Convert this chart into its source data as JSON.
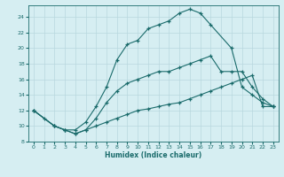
{
  "xlabel": "Humidex (Indice chaleur)",
  "bg_color": "#d6eef2",
  "grid_color": "#b8d8de",
  "line_color": "#1a6b6b",
  "xlim": [
    -0.5,
    23.5
  ],
  "ylim": [
    8,
    25.5
  ],
  "xticks": [
    0,
    1,
    2,
    3,
    4,
    5,
    6,
    7,
    8,
    9,
    10,
    11,
    12,
    13,
    14,
    15,
    16,
    17,
    18,
    19,
    20,
    21,
    22,
    23
  ],
  "yticks": [
    8,
    10,
    12,
    14,
    16,
    18,
    20,
    22,
    24
  ],
  "line1_x": [
    0,
    1,
    2,
    3,
    4,
    5,
    6,
    7,
    8,
    9,
    10,
    11,
    12,
    13,
    14,
    15,
    16,
    17,
    19,
    20,
    21,
    22,
    23
  ],
  "line1_y": [
    12,
    11,
    10,
    9.5,
    9.5,
    10.5,
    12.5,
    15,
    18.5,
    20.5,
    21,
    22.5,
    23,
    23.5,
    24.5,
    25,
    24.5,
    23,
    20,
    15,
    14,
    13,
    12.5
  ],
  "line2_x": [
    0,
    2,
    3,
    4,
    5,
    6,
    7,
    8,
    9,
    10,
    11,
    12,
    13,
    14,
    15,
    16,
    17,
    18,
    19,
    20,
    21,
    22,
    23
  ],
  "line2_y": [
    12,
    10,
    9.5,
    9,
    9.5,
    11,
    13,
    14.5,
    15.5,
    16,
    16.5,
    17,
    17,
    17.5,
    18,
    18.5,
    19,
    17,
    17,
    17,
    15,
    13.5,
    12.5
  ],
  "line3_x": [
    0,
    2,
    3,
    4,
    5,
    6,
    7,
    8,
    9,
    10,
    11,
    12,
    13,
    14,
    15,
    16,
    17,
    18,
    19,
    20,
    21,
    22,
    23
  ],
  "line3_y": [
    12,
    10,
    9.5,
    9,
    9.5,
    10,
    10.5,
    11,
    11.5,
    12,
    12.2,
    12.5,
    12.8,
    13,
    13.5,
    14,
    14.5,
    15,
    15.5,
    16,
    16.5,
    12.5,
    12.5
  ]
}
